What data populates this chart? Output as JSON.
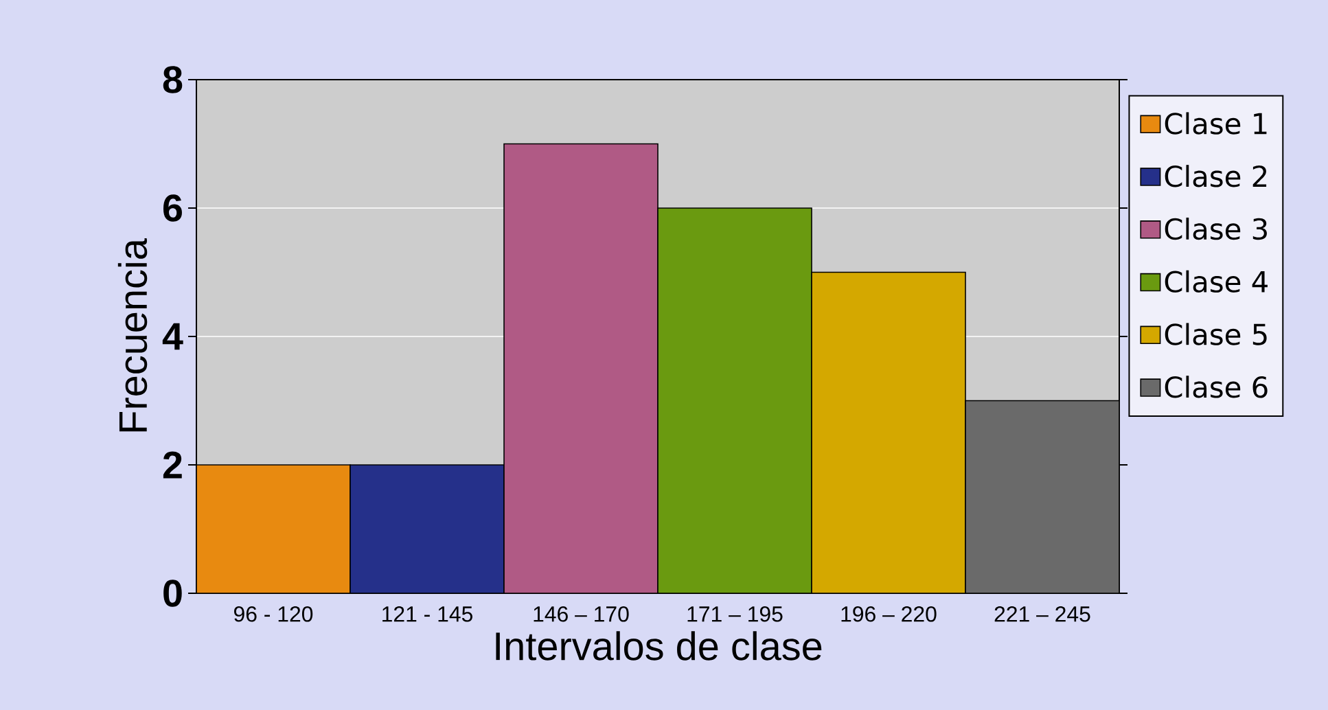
{
  "chart_data": {
    "type": "bar",
    "xlabel": "Intervalos de clase",
    "ylabel": "Frecuencia",
    "categories": [
      "96 - 120",
      "121 - 145",
      "146 – 170",
      "171 – 195",
      "196 – 220",
      "221 – 245"
    ],
    "series": [
      {
        "name": "Clase 1",
        "color": "#e88a10",
        "values": [
          2,
          null,
          null,
          null,
          null,
          null
        ]
      },
      {
        "name": "Clase 2",
        "color": "#25308a",
        "values": [
          null,
          2,
          null,
          null,
          null,
          null
        ]
      },
      {
        "name": "Clase 3",
        "color": "#b05a85",
        "values": [
          null,
          null,
          7,
          null,
          null,
          null
        ]
      },
      {
        "name": "Clase 4",
        "color": "#6a9a10",
        "values": [
          null,
          null,
          null,
          6,
          null,
          null
        ]
      },
      {
        "name": "Clase 5",
        "color": "#d4a800",
        "values": [
          null,
          null,
          null,
          null,
          5,
          null
        ]
      },
      {
        "name": "Clase 6",
        "color": "#6a6a6a",
        "values": [
          null,
          null,
          null,
          null,
          null,
          3
        ]
      }
    ],
    "ylim": [
      0,
      8
    ],
    "yticks": [
      0,
      2,
      4,
      6,
      8
    ],
    "grid": "y",
    "legend": "right"
  }
}
